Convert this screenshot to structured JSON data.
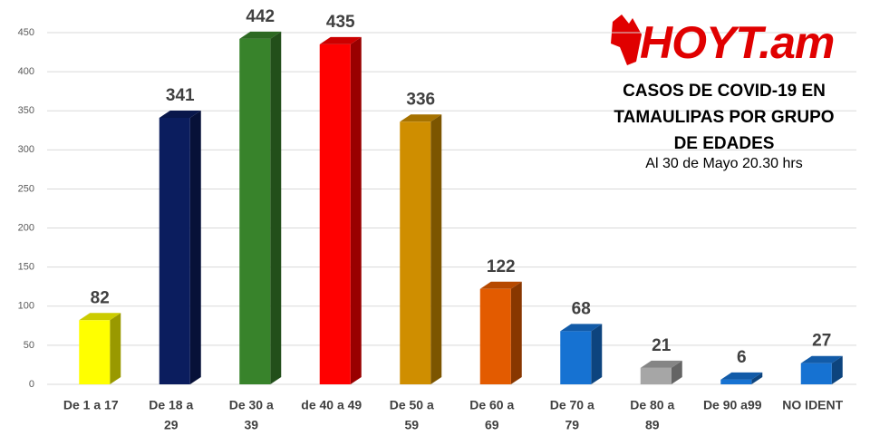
{
  "chart_data": {
    "type": "bar3d",
    "logo": "HOYT.am",
    "title": "CASOS DE COVID-19 EN TAMAULIPAS POR GRUPO DE EDADES",
    "subtitle": "Al 30 de Mayo 20.30 hrs",
    "categories": [
      [
        "De 1 a 17"
      ],
      [
        "De 18 a",
        "29"
      ],
      [
        "De 30 a",
        "39"
      ],
      [
        "de 40 a 49"
      ],
      [
        "De 50 a",
        "59"
      ],
      [
        "De 60 a",
        "69"
      ],
      [
        "De 70 a",
        "79"
      ],
      [
        "De 80 a",
        "89"
      ],
      [
        "De 90 a99"
      ],
      [
        "NO IDENT"
      ]
    ],
    "values": [
      82,
      341,
      442,
      435,
      336,
      122,
      68,
      21,
      6,
      27
    ],
    "colors": [
      "#ffff00",
      "#0b1d5e",
      "#38832b",
      "#ff0000",
      "#cf8e00",
      "#e35b00",
      "#1672d2",
      "#a6a6a6",
      "#1672d2",
      "#1672d2"
    ],
    "ylim": [
      0,
      450
    ],
    "yticks": [
      0,
      50,
      100,
      150,
      200,
      250,
      300,
      350,
      400,
      450
    ],
    "grid": true
  }
}
